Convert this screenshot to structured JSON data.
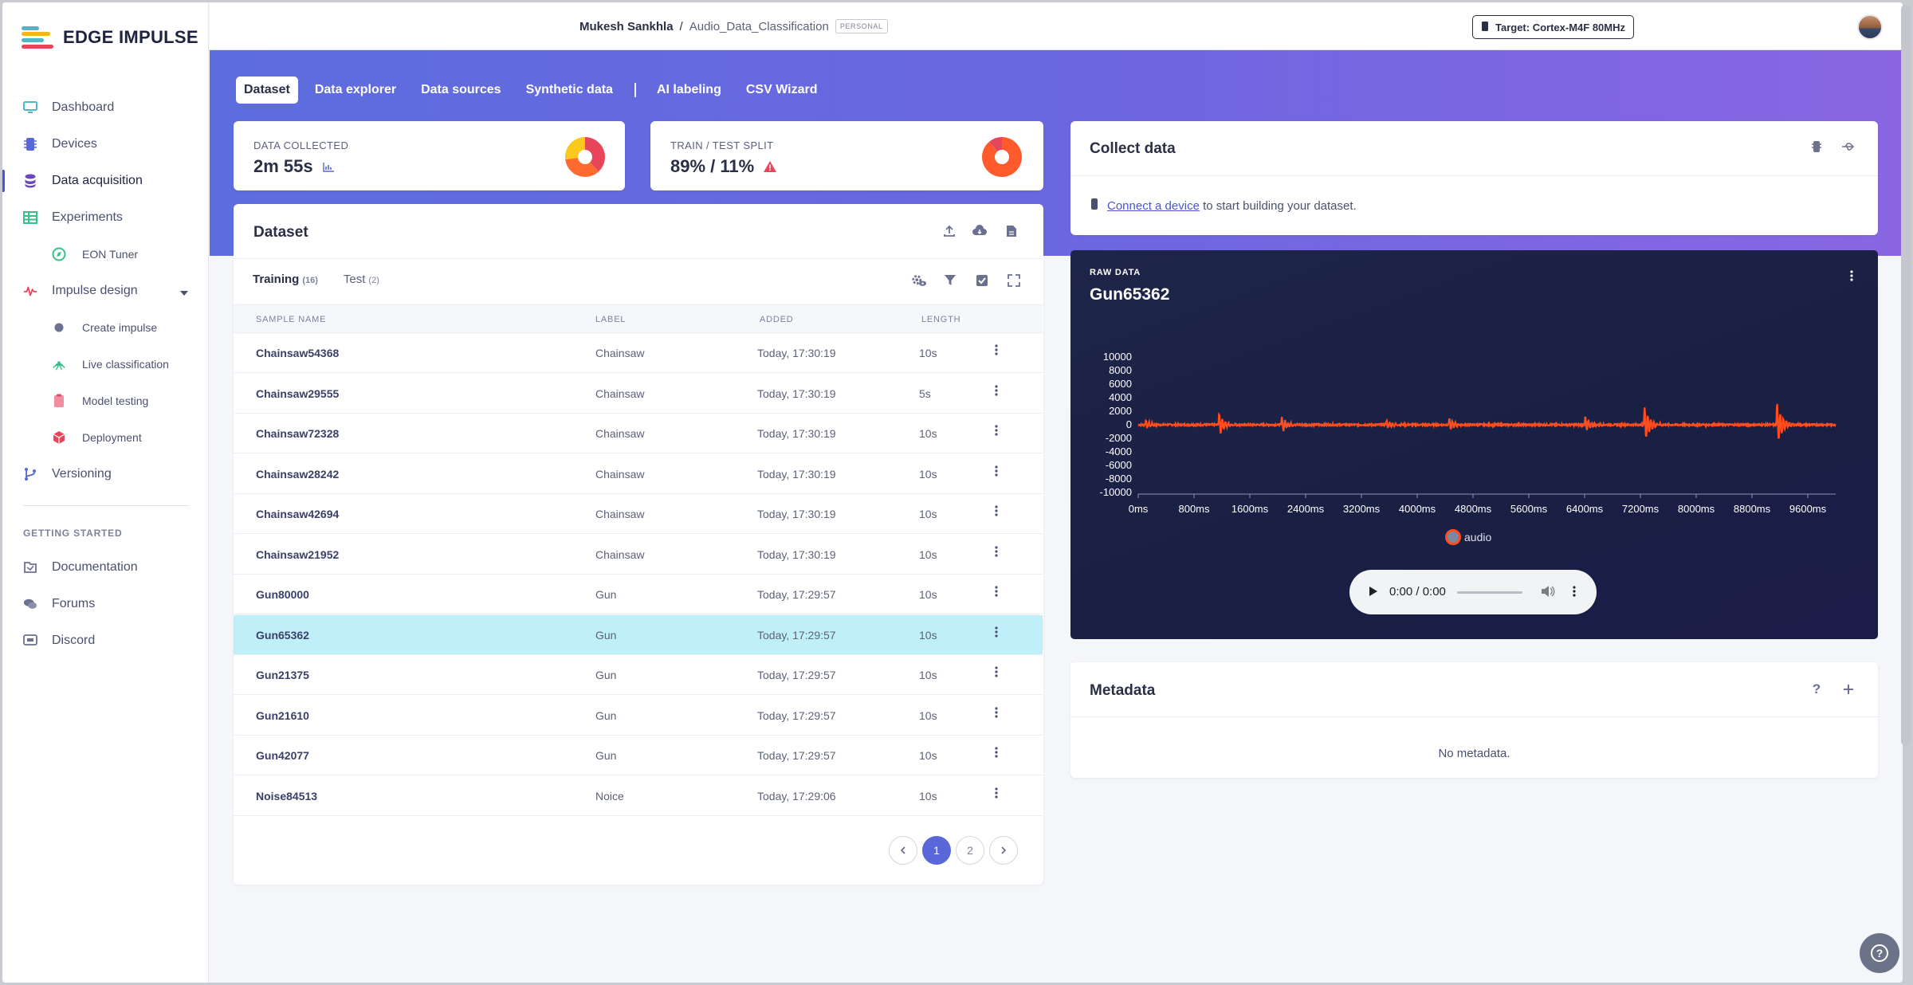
{
  "brand": {
    "name": "EDGE IMPULSE",
    "colors": [
      "#f6b519",
      "#4db7c6",
      "#e7455a"
    ]
  },
  "sidebar": {
    "items": [
      {
        "label": "Dashboard",
        "icon": "monitor-icon"
      },
      {
        "label": "Devices",
        "icon": "chip-icon"
      },
      {
        "label": "Data acquisition",
        "icon": "database-icon"
      },
      {
        "label": "Experiments",
        "icon": "table-icon"
      },
      {
        "label": "EON Tuner",
        "icon": "compass-icon"
      },
      {
        "label": "Impulse design",
        "icon": "pulse-icon"
      },
      {
        "label": "Create impulse",
        "icon": "dot-icon"
      },
      {
        "label": "Live classification",
        "icon": "broadcast-icon"
      },
      {
        "label": "Model testing",
        "icon": "clipboard-icon"
      },
      {
        "label": "Deployment",
        "icon": "cube-icon"
      },
      {
        "label": "Versioning",
        "icon": "branch-icon"
      }
    ],
    "section_title": "GETTING STARTED",
    "help_items": [
      {
        "label": "Documentation",
        "icon": "book-icon"
      },
      {
        "label": "Forums",
        "icon": "chat-icon"
      },
      {
        "label": "Discord",
        "icon": "discord-icon"
      }
    ]
  },
  "topbar": {
    "user": "Mukesh Sankhla",
    "separator": "/",
    "project": "Audio_Data_Classification",
    "badge": "PERSONAL",
    "target": "Target: Cortex-M4F 80MHz"
  },
  "tabs": [
    "Dataset",
    "Data explorer",
    "Data sources",
    "Synthetic data",
    "AI labeling",
    "CSV Wizard"
  ],
  "stats": {
    "collected_label": "DATA COLLECTED",
    "collected_value": "2m 55s",
    "split_label": "TRAIN / TEST SPLIT",
    "split_value": "89% / 11%",
    "split_fraction": 0.89,
    "collected_pie": [
      {
        "label": "Chainsaw",
        "fraction": 0.38,
        "color": "#e7455a"
      },
      {
        "label": "Gun",
        "fraction": 0.35,
        "color": "#ff6a2f"
      },
      {
        "label": "Noice",
        "fraction": 0.27,
        "color": "#fbc91c"
      }
    ]
  },
  "dataset": {
    "title": "Dataset",
    "training_label": "Training",
    "training_count": "(16)",
    "test_label": "Test",
    "test_count": "(2)",
    "columns": [
      "SAMPLE NAME",
      "LABEL",
      "ADDED",
      "LENGTH"
    ],
    "rows": [
      {
        "name": "Chainsaw54368",
        "label": "Chainsaw",
        "added": "Today, 17:30:19",
        "length": "10s"
      },
      {
        "name": "Chainsaw29555",
        "label": "Chainsaw",
        "added": "Today, 17:30:19",
        "length": "5s"
      },
      {
        "name": "Chainsaw72328",
        "label": "Chainsaw",
        "added": "Today, 17:30:19",
        "length": "10s"
      },
      {
        "name": "Chainsaw28242",
        "label": "Chainsaw",
        "added": "Today, 17:30:19",
        "length": "10s"
      },
      {
        "name": "Chainsaw42694",
        "label": "Chainsaw",
        "added": "Today, 17:30:19",
        "length": "10s"
      },
      {
        "name": "Chainsaw21952",
        "label": "Chainsaw",
        "added": "Today, 17:30:19",
        "length": "10s"
      },
      {
        "name": "Gun80000",
        "label": "Gun",
        "added": "Today, 17:29:57",
        "length": "10s"
      },
      {
        "name": "Gun65362",
        "label": "Gun",
        "added": "Today, 17:29:57",
        "length": "10s"
      },
      {
        "name": "Gun21375",
        "label": "Gun",
        "added": "Today, 17:29:57",
        "length": "10s"
      },
      {
        "name": "Gun21610",
        "label": "Gun",
        "added": "Today, 17:29:57",
        "length": "10s"
      },
      {
        "name": "Gun42077",
        "label": "Gun",
        "added": "Today, 17:29:57",
        "length": "10s"
      },
      {
        "name": "Noise84513",
        "label": "Noice",
        "added": "Today, 17:29:06",
        "length": "10s"
      }
    ],
    "selected_row": "Gun65362",
    "pages": [
      "1",
      "2"
    ],
    "current_page": "1"
  },
  "collect": {
    "title": "Collect data",
    "link": "Connect a device",
    "text": "to start building your dataset."
  },
  "raw": {
    "label": "RAW DATA",
    "title": "Gun65362",
    "legend": "audio",
    "audio_time": "0:00 / 0:00",
    "series_color": "#ff4d1f"
  },
  "chart_data": {
    "type": "line",
    "title": "Gun65362",
    "xlabel": "",
    "ylabel": "",
    "y_ticks": [
      "10000",
      "8000",
      "6000",
      "4000",
      "2000",
      "0",
      "-2000",
      "-4000",
      "-6000",
      "-8000",
      "-10000"
    ],
    "x_ticks": [
      "0ms",
      "800ms",
      "1600ms",
      "2400ms",
      "3200ms",
      "4000ms",
      "4800ms",
      "5600ms",
      "6400ms",
      "7200ms",
      "8000ms",
      "8800ms",
      "9600ms"
    ],
    "ylim": [
      -10000,
      10000
    ],
    "xlim": [
      0,
      10000
    ],
    "series": [
      {
        "name": "audio",
        "bursts_ms": [
          100,
          1150,
          2050,
          3550,
          4450,
          6400,
          7250,
          9150
        ],
        "burst_amplitude": [
          700,
          1900,
          1300,
          700,
          1100,
          1300,
          3000,
          3600
        ]
      }
    ],
    "legend_position": "bottom-center"
  },
  "metadata": {
    "title": "Metadata",
    "empty": "No metadata."
  }
}
